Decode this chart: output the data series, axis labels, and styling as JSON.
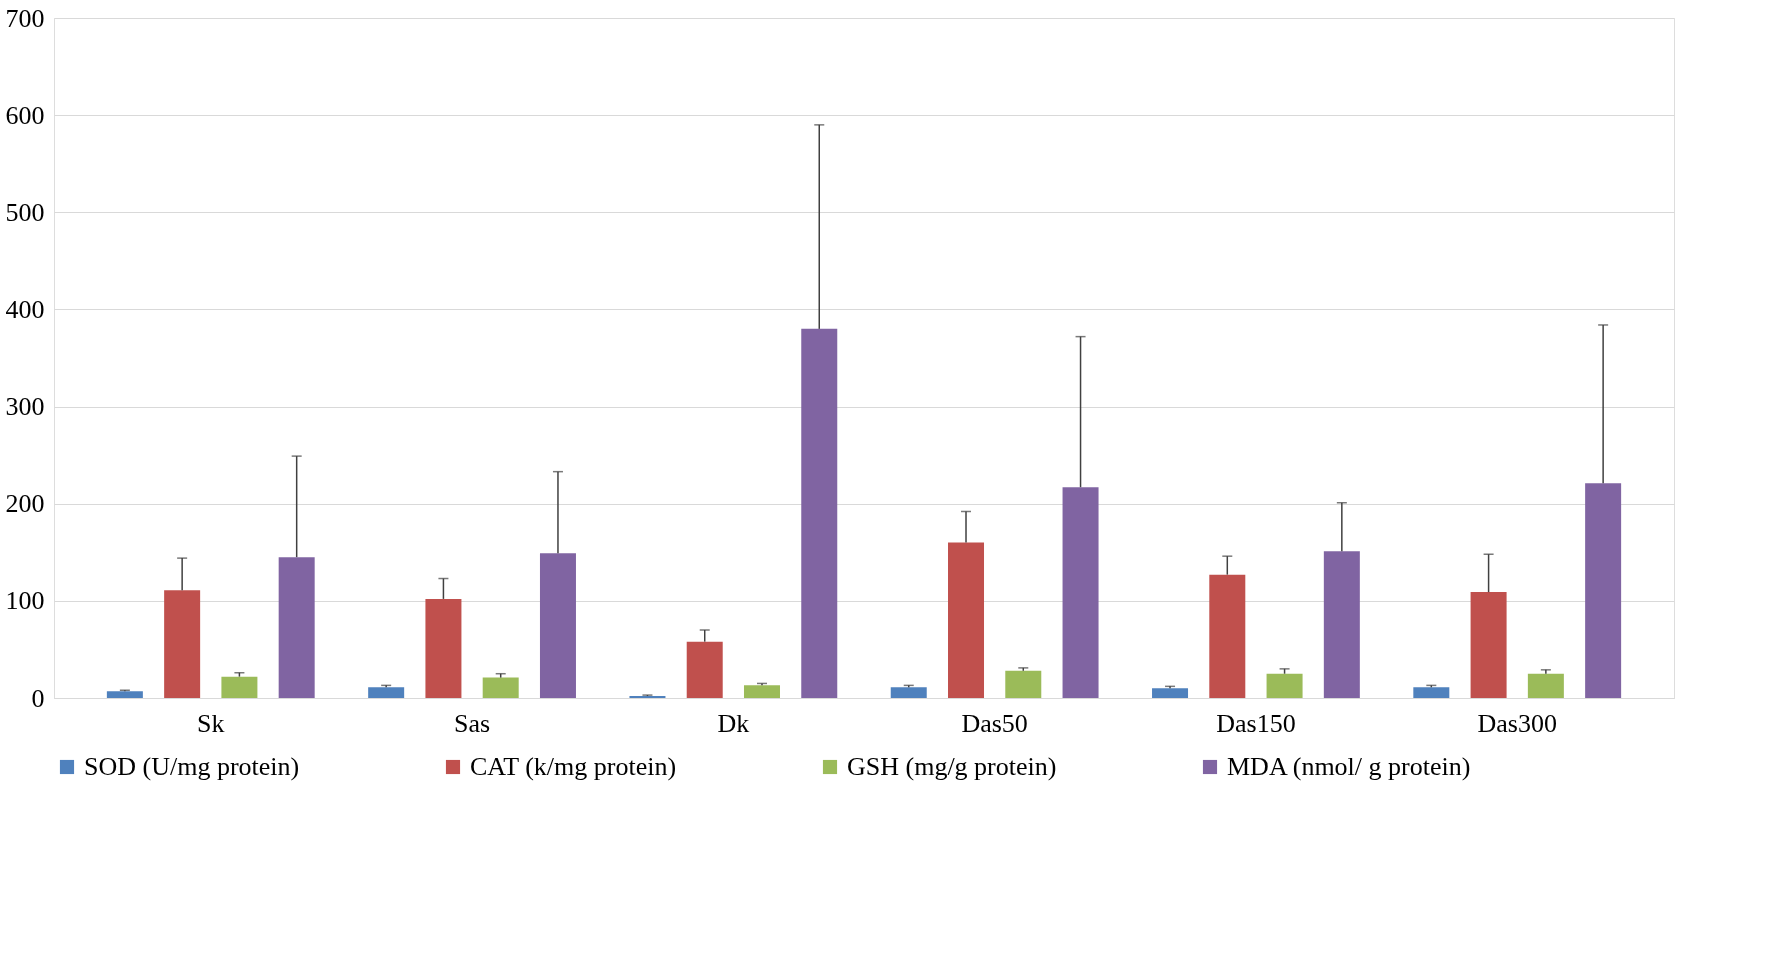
{
  "chart_data": {
    "type": "bar",
    "categories": [
      "Sk",
      "Sas",
      "Dk",
      "Das50",
      "Das150",
      "Das300"
    ],
    "series": [
      {
        "name": "SOD (U/mg protein)",
        "color": "#4f81bd",
        "values": [
          7,
          11,
          2,
          11,
          10,
          11
        ],
        "errors": [
          [
            7,
            8
          ],
          [
            11,
            13
          ],
          [
            2,
            3
          ],
          [
            11,
            13
          ],
          [
            10,
            12
          ],
          [
            11,
            13
          ]
        ]
      },
      {
        "name": "CAT (k/mg protein)",
        "color": "#c0504d",
        "values": [
          111,
          102,
          58,
          160,
          127,
          109
        ],
        "errors": [
          [
            111,
            144
          ],
          [
            102,
            123
          ],
          [
            58,
            70
          ],
          [
            160,
            192
          ],
          [
            127,
            146
          ],
          [
            109,
            148
          ]
        ]
      },
      {
        "name": "GSH (mg/g protein)",
        "color": "#9bbb59",
        "values": [
          22,
          21,
          13,
          28,
          25,
          25
        ],
        "errors": [
          [
            22,
            26
          ],
          [
            21,
            25
          ],
          [
            13,
            15
          ],
          [
            28,
            31
          ],
          [
            25,
            30
          ],
          [
            25,
            29
          ]
        ]
      },
      {
        "name": "MDA (nmol/ g protein)",
        "color": "#8064a2",
        "values": [
          145,
          149,
          380,
          217,
          151,
          221
        ],
        "errors": [
          [
            145,
            249
          ],
          [
            149,
            233
          ],
          [
            380,
            590
          ],
          [
            217,
            372
          ],
          [
            151,
            201
          ],
          [
            221,
            384
          ]
        ]
      }
    ],
    "ylim": [
      0,
      700
    ],
    "yticks": [
      0,
      100,
      200,
      300,
      400,
      500,
      600,
      700
    ],
    "grid": "y",
    "legend": "bottom"
  }
}
